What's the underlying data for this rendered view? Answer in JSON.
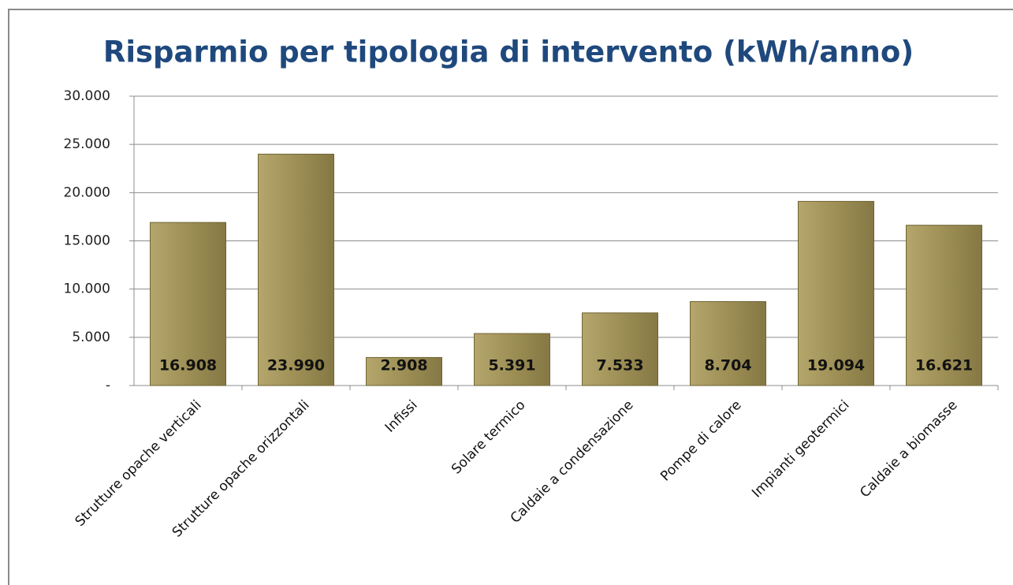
{
  "chart_data": {
    "type": "bar",
    "title": "Risparmio per tipologia di intervento (kWh/anno)",
    "categories": [
      "Strutture opache verticali",
      "Strutture opache orizzontali",
      "Infissi",
      "Solare termico",
      "Caldaie a condensazione",
      "Pompe di calore",
      "Impianti geotermici",
      "Caldaie a biomasse"
    ],
    "values": [
      16908,
      23990,
      2908,
      5391,
      7533,
      8704,
      19094,
      16621
    ],
    "value_labels": [
      "16.908",
      "23.990",
      "2.908",
      "5.391",
      "7.533",
      "8.704",
      "19.094",
      "16.621"
    ],
    "color": "#9e9058",
    "ylim": [
      0,
      30000
    ],
    "yticks": [
      {
        "value": 0,
        "label": "-"
      },
      {
        "value": 5000,
        "label": "5.000"
      },
      {
        "value": 10000,
        "label": "10.000"
      },
      {
        "value": 15000,
        "label": "15.000"
      },
      {
        "value": 20000,
        "label": "20.000"
      },
      {
        "value": 25000,
        "label": "25.000"
      },
      {
        "value": 30000,
        "label": "30.000"
      }
    ],
    "grid": true
  }
}
